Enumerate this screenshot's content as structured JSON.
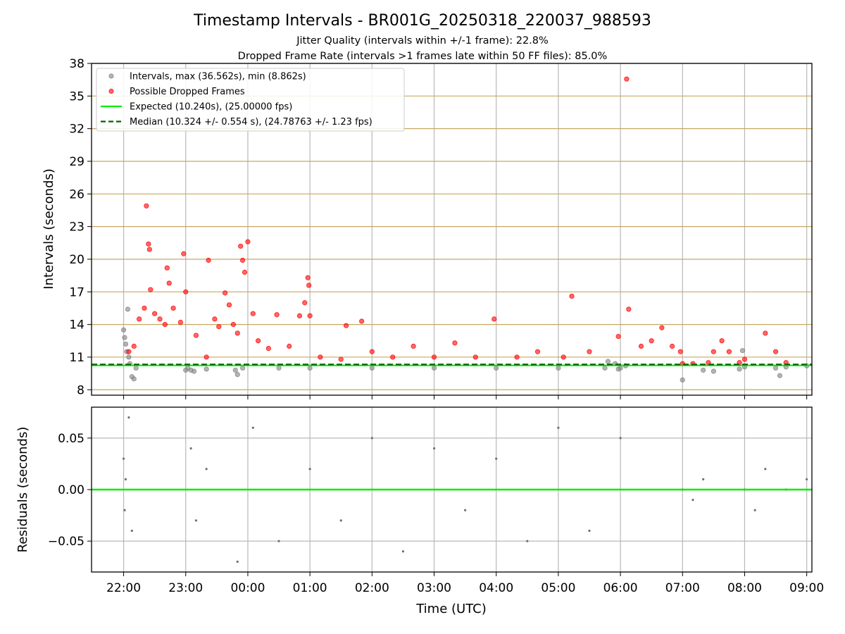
{
  "figure": {
    "title": "Timestamp Intervals - BR001G_20250318_220037_988593",
    "subtitle_line1": "Jitter Quality (intervals within +/-1 frame): 22.8%",
    "subtitle_line2": "Dropped Frame Rate (intervals >1 frames late within 50 FF files): 85.0%"
  },
  "colors": {
    "intervals": "#808080",
    "dropped": "#ff0000",
    "expected": "#00ee00",
    "median": "#006400",
    "hgrid": "#c8a860",
    "vgrid": "#b8b8b8"
  },
  "chart_data": [
    {
      "type": "scatter",
      "ylabel": "Intervals (seconds)",
      "xlim": [
        "21:29",
        "09:05"
      ],
      "ylim": [
        7.5,
        38
      ],
      "yticks": [
        8,
        11,
        14,
        17,
        20,
        23,
        26,
        29,
        32,
        35,
        38
      ],
      "grid": true,
      "legend_position": "upper-left",
      "legend": [
        {
          "label": "Intervals, max (36.562s), min (8.862s)",
          "kind": "marker",
          "color": "#808080"
        },
        {
          "label": "Possible Dropped Frames",
          "kind": "marker",
          "color": "#ff0000"
        },
        {
          "label": "Expected (10.240s), (25.00000 fps)",
          "kind": "line",
          "color": "#00ee00"
        },
        {
          "label": "Median (10.324 +/- 0.554 s), (24.78763 +/- 1.23 fps)",
          "kind": "dashed",
          "color": "#006400"
        }
      ],
      "expected": 10.24,
      "median": 10.324,
      "max_interval": 36.562,
      "min_interval": 8.862,
      "series": [
        {
          "name": "Intervals",
          "points": [
            [
              "22:00",
              13.5
            ],
            [
              "22:01",
              12.8
            ],
            [
              "22:02",
              12.2
            ],
            [
              "22:03",
              11.5
            ],
            [
              "22:04",
              15.4
            ],
            [
              "22:05",
              11.0
            ],
            [
              "22:06",
              10.4
            ],
            [
              "22:08",
              9.2
            ],
            [
              "22:10",
              9.0
            ],
            [
              "22:12",
              10.0
            ],
            [
              "23:00",
              9.8
            ],
            [
              "23:02",
              10.0
            ],
            [
              "23:05",
              9.8
            ],
            [
              "23:08",
              9.7
            ],
            [
              "23:20",
              9.9
            ],
            [
              "23:48",
              9.8
            ],
            [
              "23:50",
              9.4
            ],
            [
              "23:55",
              10.0
            ],
            [
              "00:30",
              10.0
            ],
            [
              "01:00",
              10.0
            ],
            [
              "02:00",
              10.0
            ],
            [
              "03:00",
              10.0
            ],
            [
              "04:00",
              10.0
            ],
            [
              "05:00",
              10.0
            ],
            [
              "05:45",
              10.0
            ],
            [
              "05:48",
              10.6
            ],
            [
              "05:55",
              10.4
            ],
            [
              "05:58",
              9.9
            ],
            [
              "06:00",
              10.0
            ],
            [
              "06:05",
              10.2
            ],
            [
              "07:00",
              8.9
            ],
            [
              "07:20",
              9.8
            ],
            [
              "07:30",
              9.7
            ],
            [
              "07:55",
              9.9
            ],
            [
              "07:58",
              11.6
            ],
            [
              "08:00",
              10.1
            ],
            [
              "08:30",
              10.0
            ],
            [
              "08:34",
              9.3
            ],
            [
              "08:40",
              10.1
            ],
            [
              "09:00",
              10.2
            ]
          ]
        },
        {
          "name": "Possible Dropped Frames",
          "points": [
            [
              "22:05",
              11.5
            ],
            [
              "22:10",
              12.0
            ],
            [
              "22:15",
              14.5
            ],
            [
              "22:20",
              15.5
            ],
            [
              "22:22",
              24.9
            ],
            [
              "22:24",
              21.4
            ],
            [
              "22:25",
              20.9
            ],
            [
              "22:26",
              17.2
            ],
            [
              "22:30",
              15.0
            ],
            [
              "22:35",
              14.5
            ],
            [
              "22:40",
              14.0
            ],
            [
              "22:42",
              19.2
            ],
            [
              "22:44",
              17.8
            ],
            [
              "22:48",
              15.5
            ],
            [
              "22:55",
              14.2
            ],
            [
              "22:58",
              20.5
            ],
            [
              "23:00",
              17.0
            ],
            [
              "23:10",
              13.0
            ],
            [
              "23:20",
              11.0
            ],
            [
              "23:22",
              19.9
            ],
            [
              "23:28",
              14.5
            ],
            [
              "23:32",
              13.8
            ],
            [
              "23:38",
              16.9
            ],
            [
              "23:42",
              15.8
            ],
            [
              "23:46",
              14.0
            ],
            [
              "23:50",
              13.2
            ],
            [
              "23:53",
              21.2
            ],
            [
              "23:55",
              19.9
            ],
            [
              "23:57",
              18.8
            ],
            [
              "00:00",
              21.6
            ],
            [
              "00:05",
              15.0
            ],
            [
              "00:10",
              12.5
            ],
            [
              "00:20",
              11.8
            ],
            [
              "00:28",
              14.9
            ],
            [
              "00:40",
              12.0
            ],
            [
              "00:50",
              14.8
            ],
            [
              "00:55",
              16.0
            ],
            [
              "00:58",
              18.3
            ],
            [
              "00:59",
              17.6
            ],
            [
              "01:00",
              14.8
            ],
            [
              "01:10",
              11.0
            ],
            [
              "01:30",
              10.8
            ],
            [
              "01:35",
              13.9
            ],
            [
              "01:50",
              14.3
            ],
            [
              "02:00",
              11.5
            ],
            [
              "02:20",
              11.0
            ],
            [
              "02:40",
              12.0
            ],
            [
              "03:00",
              11.0
            ],
            [
              "03:20",
              12.3
            ],
            [
              "03:40",
              11.0
            ],
            [
              "03:58",
              14.5
            ],
            [
              "04:20",
              11.0
            ],
            [
              "04:40",
              11.5
            ],
            [
              "05:05",
              11.0
            ],
            [
              "05:13",
              16.6
            ],
            [
              "05:30",
              11.5
            ],
            [
              "05:58",
              12.9
            ],
            [
              "06:06",
              36.562
            ],
            [
              "06:08",
              15.4
            ],
            [
              "06:20",
              12.0
            ],
            [
              "06:30",
              12.5
            ],
            [
              "06:40",
              13.7
            ],
            [
              "06:50",
              12.0
            ],
            [
              "06:58",
              11.5
            ],
            [
              "07:00",
              10.4
            ],
            [
              "07:10",
              10.4
            ],
            [
              "07:25",
              10.5
            ],
            [
              "07:30",
              11.5
            ],
            [
              "07:38",
              12.5
            ],
            [
              "07:45",
              11.5
            ],
            [
              "07:55",
              10.5
            ],
            [
              "08:00",
              10.8
            ],
            [
              "08:20",
              13.2
            ],
            [
              "08:30",
              11.5
            ],
            [
              "08:40",
              10.5
            ]
          ]
        }
      ]
    },
    {
      "type": "scatter",
      "ylabel": "Residuals (seconds)",
      "xlabel": "Time (UTC)",
      "xlim": [
        "21:29",
        "09:05"
      ],
      "ylim": [
        -0.08,
        0.08
      ],
      "yticks": [
        -0.05,
        0.0,
        0.05
      ],
      "ytick_labels": [
        "−0.05",
        "0.00",
        "0.05"
      ],
      "xticks": [
        "22:00",
        "23:00",
        "00:00",
        "01:00",
        "02:00",
        "03:00",
        "04:00",
        "05:00",
        "06:00",
        "07:00",
        "08:00",
        "09:00"
      ],
      "grid": true,
      "zero_line_color": "#00ee00",
      "series": [
        {
          "name": "Residuals",
          "points": [
            [
              "22:00",
              0.03
            ],
            [
              "22:01",
              -0.02
            ],
            [
              "22:02",
              0.01
            ],
            [
              "22:05",
              0.07
            ],
            [
              "22:08",
              -0.04
            ],
            [
              "23:05",
              0.04
            ],
            [
              "23:10",
              -0.03
            ],
            [
              "23:20",
              0.02
            ],
            [
              "23:50",
              -0.07
            ],
            [
              "00:05",
              0.06
            ],
            [
              "00:30",
              -0.05
            ],
            [
              "01:00",
              0.02
            ],
            [
              "01:30",
              -0.03
            ],
            [
              "02:00",
              0.05
            ],
            [
              "02:30",
              -0.06
            ],
            [
              "03:00",
              0.04
            ],
            [
              "03:30",
              -0.02
            ],
            [
              "04:00",
              0.03
            ],
            [
              "04:30",
              -0.05
            ],
            [
              "05:00",
              0.06
            ],
            [
              "05:30",
              -0.04
            ],
            [
              "06:00",
              0.05
            ],
            [
              "07:00",
              0.0
            ],
            [
              "07:10",
              -0.01
            ],
            [
              "07:20",
              0.01
            ],
            [
              "08:00",
              0.0
            ],
            [
              "08:10",
              -0.02
            ],
            [
              "08:20",
              0.02
            ],
            [
              "08:40",
              0.0
            ],
            [
              "09:00",
              0.01
            ]
          ]
        }
      ]
    }
  ]
}
